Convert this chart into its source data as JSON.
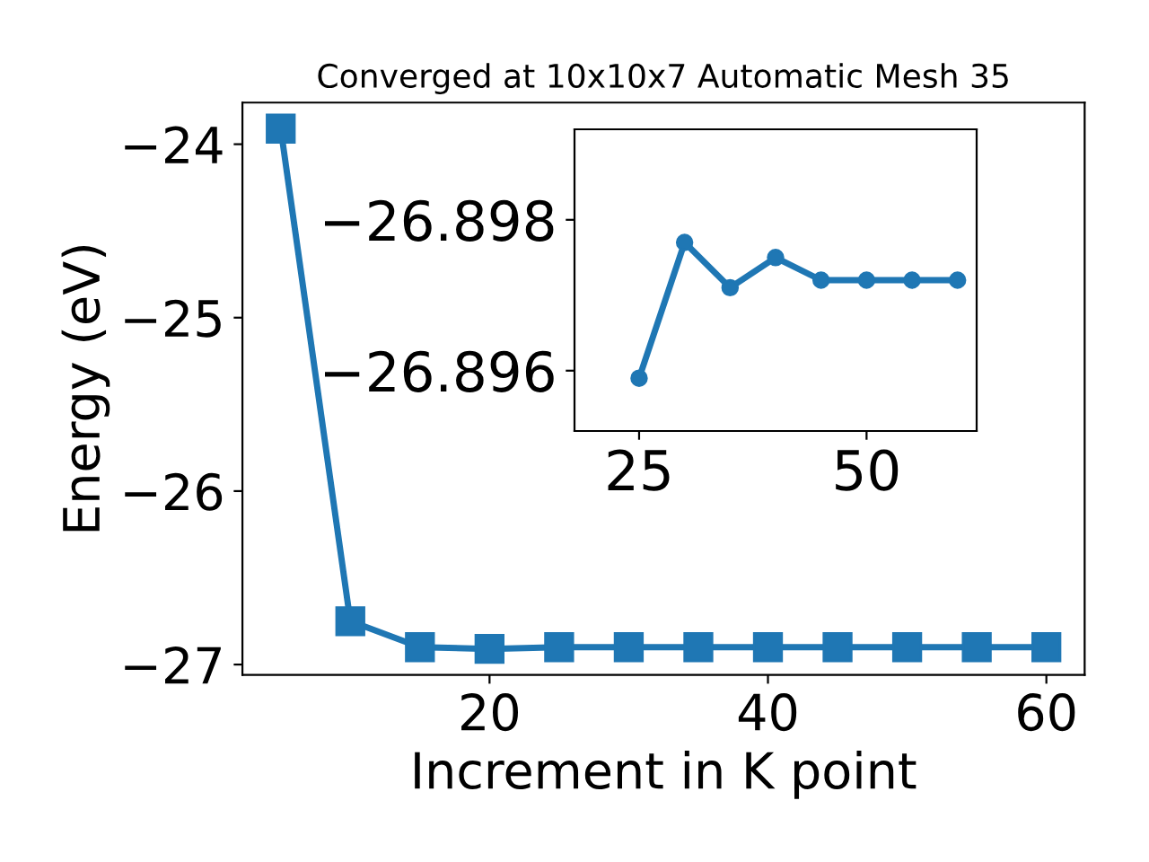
{
  "chart_data": [
    {
      "type": "line",
      "title": "Converged at 10x10x7 Automatic Mesh 35",
      "xlabel": "Increment in K point",
      "ylabel": "Energy (eV)",
      "x": [
        5,
        10,
        15,
        20,
        25,
        30,
        35,
        40,
        45,
        50,
        55,
        60
      ],
      "series": [
        {
          "color": "#1f77b4",
          "values": [
            -23.91,
            -26.75,
            -26.9,
            -26.91,
            -26.9,
            -26.9,
            -26.9,
            -26.9,
            -26.9,
            -26.9,
            -26.9,
            -26.9
          ]
        }
      ],
      "marker": "square",
      "line_style": "solid",
      "grid": false,
      "xlim": [
        2.25,
        62.75
      ],
      "ylim": [
        -27.06,
        -23.76
      ],
      "xticks": [
        20,
        40,
        60
      ],
      "yticks": [
        {
          "value": -27,
          "label": "−27"
        },
        {
          "value": -26,
          "label": "−26"
        },
        {
          "value": -25,
          "label": "−25"
        },
        {
          "value": -24,
          "label": "−24"
        }
      ]
    },
    {
      "type": "line",
      "x": [
        25,
        30,
        35,
        40,
        45,
        50,
        55,
        60
      ],
      "series": [
        {
          "color": "#1f77b4",
          "values": [
            -26.8959,
            -26.8977,
            -26.8971,
            -26.8975,
            -26.8972,
            -26.8972,
            -26.8972,
            -26.8972
          ]
        }
      ],
      "marker": "circle",
      "line_style": "solid",
      "grid": false,
      "xlim": [
        17.9,
        62.1
      ],
      "ylim": [
        -26.8952,
        -26.8992
      ],
      "xticks": [
        25,
        50
      ],
      "yticks": [
        {
          "value": -26.898,
          "label": "−26.898"
        },
        {
          "value": -26.896,
          "label": "−26.896"
        }
      ]
    }
  ]
}
